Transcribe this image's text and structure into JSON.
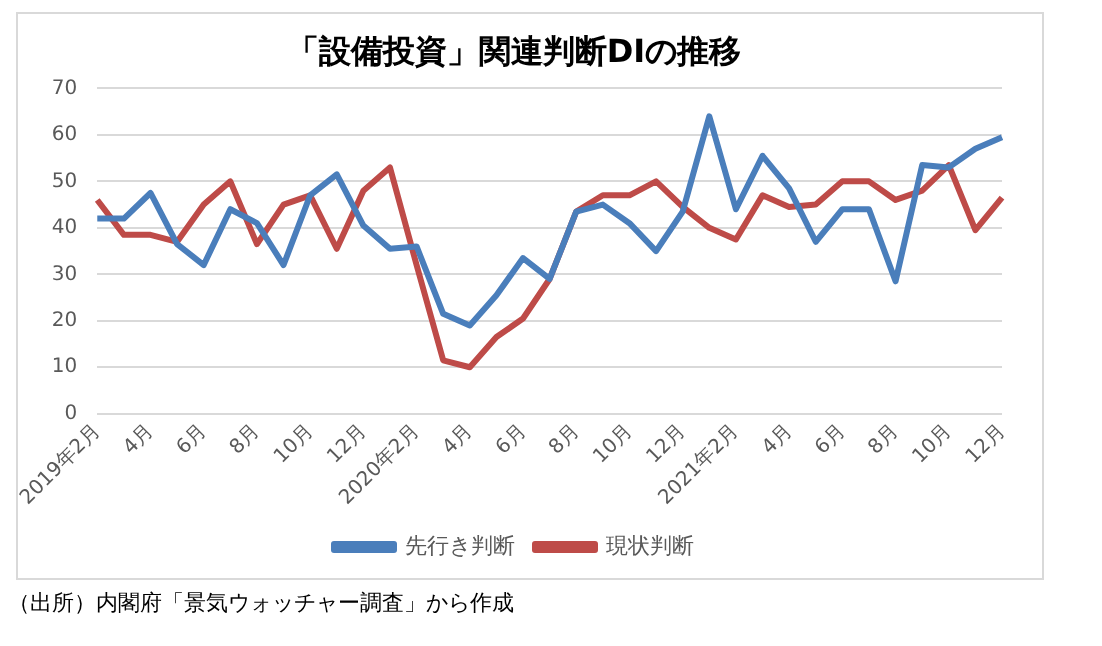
{
  "chart_data": {
    "type": "line",
    "title": "「設備投資」関連判断DIの推移",
    "categories": [
      "2019年2月",
      null,
      "4月",
      null,
      "6月",
      null,
      "8月",
      null,
      "10月",
      null,
      "12月",
      null,
      "2020年2月",
      null,
      "4月",
      null,
      "6月",
      null,
      "8月",
      null,
      "10月",
      null,
      "12月",
      null,
      "2021年2月",
      null,
      "4月",
      null,
      "6月",
      null,
      "8月",
      null,
      "10月",
      null,
      "12月"
    ],
    "series": [
      {
        "name": "先行き判断",
        "color": "#4a7ebb",
        "values": [
          42,
          42,
          47.5,
          36.5,
          32,
          44,
          41,
          32,
          47,
          51.5,
          40.5,
          35.5,
          36,
          21.5,
          19,
          25.5,
          33.5,
          29,
          43.5,
          45,
          41,
          35,
          43.5,
          64,
          44,
          55.5,
          48.5,
          37,
          44,
          44,
          28.5,
          53.5,
          53,
          57,
          59.5
        ]
      },
      {
        "name": "現状判断",
        "color": "#be4b48",
        "values": [
          46,
          38.5,
          38.5,
          37,
          45,
          50,
          36.5,
          45,
          47,
          35.5,
          48,
          53,
          32,
          11.5,
          10,
          16.5,
          20.5,
          29,
          43.5,
          47,
          47,
          50,
          44.5,
          40,
          37.5,
          47,
          44.5,
          45,
          50,
          50,
          46,
          48,
          53.5,
          39.5,
          46.5
        ]
      }
    ],
    "ylim": [
      0,
      70
    ],
    "yticks": [
      0,
      10,
      20,
      30,
      40,
      50,
      60,
      70
    ],
    "grid": "y",
    "legend": "bottom",
    "marker": "none",
    "line_style": "solid",
    "annotations": [
      "（出所）内閣府「景気ウォッチャー調査」から作成"
    ]
  }
}
